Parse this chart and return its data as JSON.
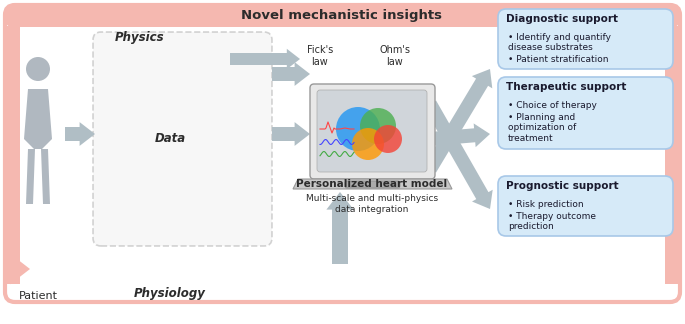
{
  "title": "Novel mechanistic insights",
  "title_bg": "#f5b8b0",
  "title_color": "#2c2c2c",
  "box_bg": "#d6eaf8",
  "box_border": "#a8c8e8",
  "physics_label": "Physics",
  "data_label": "Data",
  "physiology_label": "Physiology",
  "patient_label": "Patient",
  "heart_model_label": "Personalized heart model",
  "multiscale_label": "Multi-scale and multi-physics\ndata integration",
  "ficks_label": "Fick's\nlaw",
  "ohms_label": "Ohm's\nlaw",
  "support_boxes": [
    {
      "title": "Diagnostic support",
      "bullets": [
        "Identify and quantify\ndisease substrates",
        "Patient stratification"
      ]
    },
    {
      "title": "Therapeutic support",
      "bullets": [
        "Choice of therapy",
        "Planning and\noptimization of\ntreatment"
      ]
    },
    {
      "title": "Prognostic support",
      "bullets": [
        "Risk prediction",
        "Therapy outcome\nprediction"
      ]
    }
  ],
  "arrow_color": "#aab8c2",
  "pink_arrow_color": "#f5b8b0",
  "dashed_box_color": "#aaaaaa",
  "bg_color": "#ffffff"
}
